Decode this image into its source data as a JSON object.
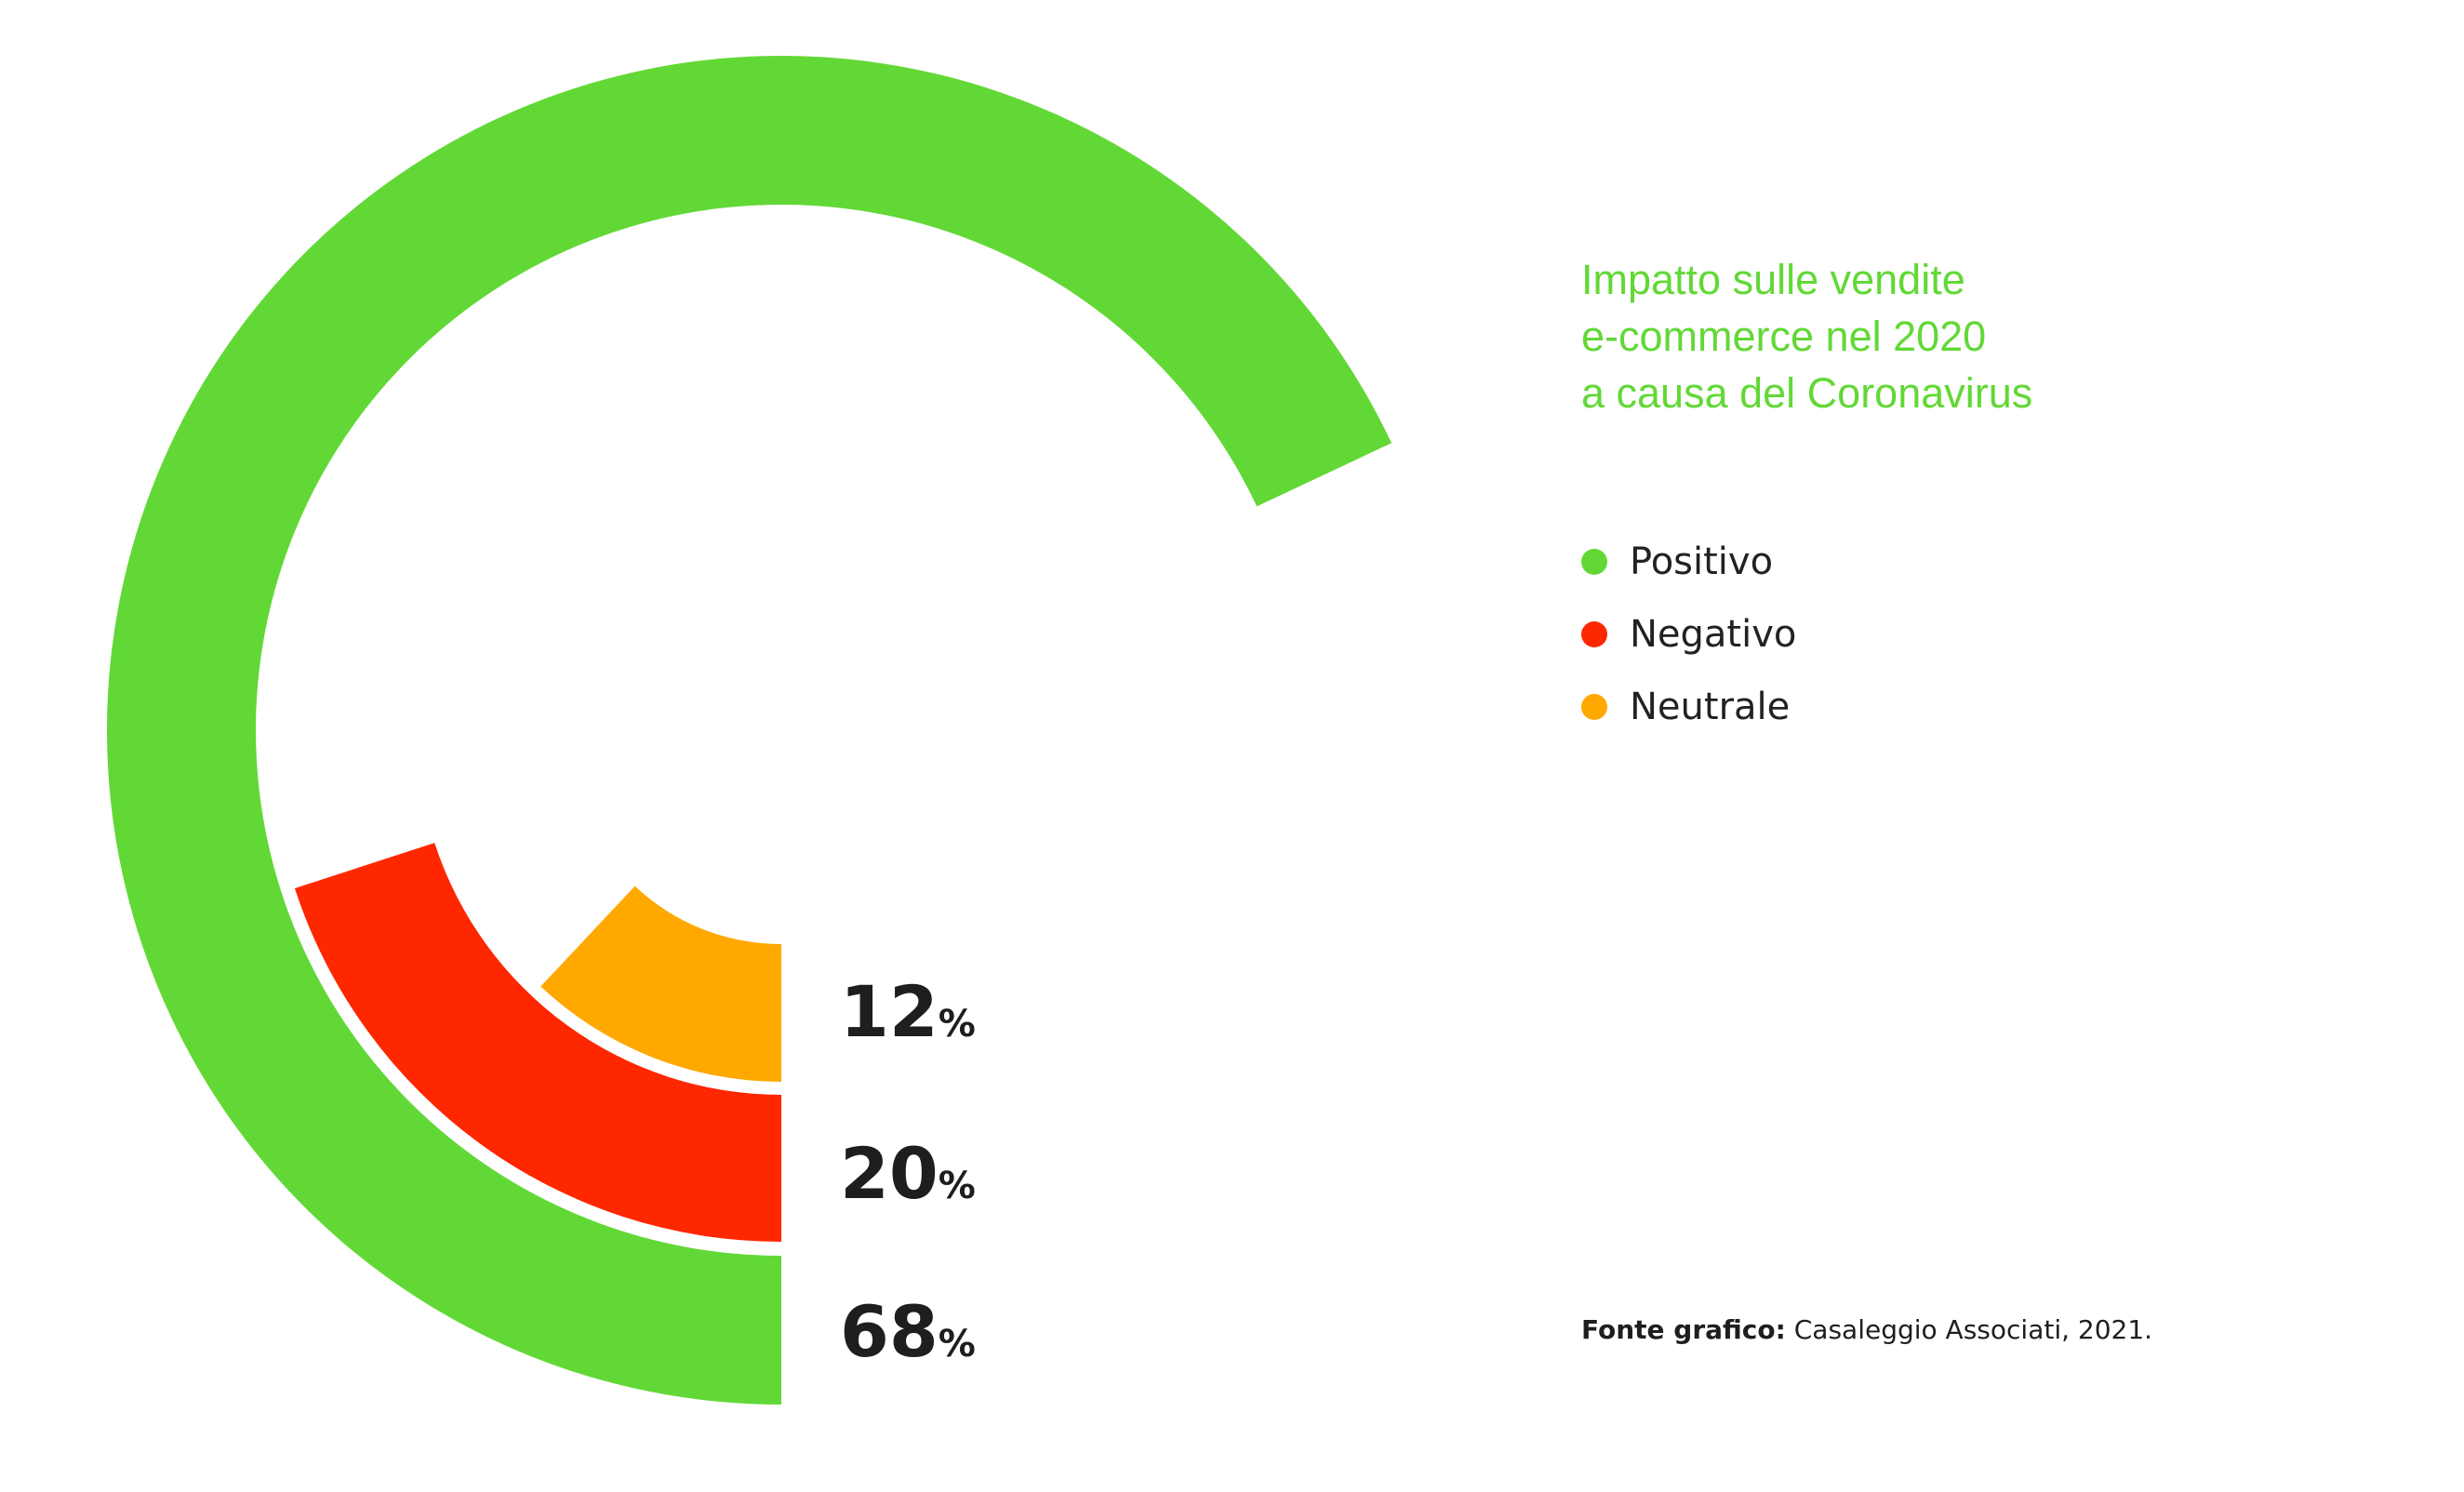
{
  "chart_data": {
    "type": "radial-bar",
    "title": [
      "Impatto sulle vendite",
      "e-commerce nel 2020",
      "a causa del Coronavirus"
    ],
    "series": [
      {
        "name": "Positivo",
        "value": 68,
        "color": "#62d836"
      },
      {
        "name": "Negativo",
        "value": 20,
        "color": "#ff2700"
      },
      {
        "name": "Neutrale",
        "value": 12,
        "color": "#ffa800"
      }
    ],
    "unit": "%",
    "source_label": "Fonte grafico:",
    "source_text": "Casaleggio Associati, 2021."
  }
}
